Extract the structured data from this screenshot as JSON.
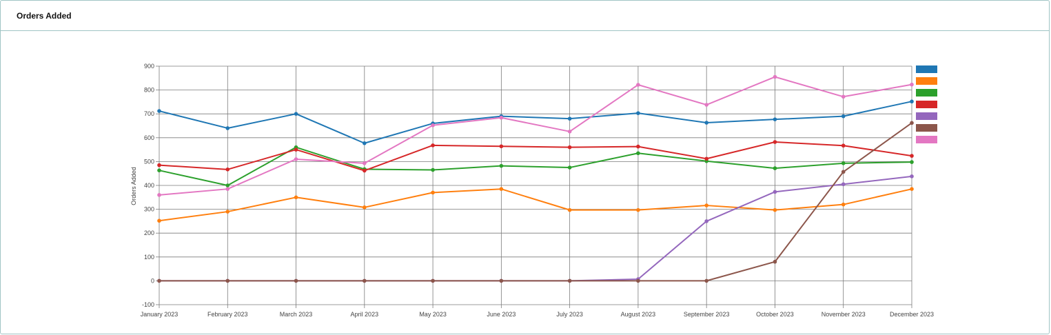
{
  "panel": {
    "title": "Orders Added"
  },
  "chart_data": {
    "type": "line",
    "title": "",
    "xlabel": "",
    "ylabel": "Orders Added",
    "ylim": [
      -100,
      900
    ],
    "yticks": [
      -100,
      0,
      100,
      200,
      300,
      400,
      500,
      600,
      700,
      800,
      900
    ],
    "grid": true,
    "legend": "right",
    "categories": [
      "January 2023",
      "February 2023",
      "March 2023",
      "April 2023",
      "May 2023",
      "June 2023",
      "July 2023",
      "August 2023",
      "September 2023",
      "October 2023",
      "November 2023",
      "December 2023"
    ],
    "series": [
      {
        "color": "#1f77b4",
        "values": [
          712,
          640,
          700,
          577,
          660,
          690,
          680,
          703,
          663,
          677,
          690,
          752
        ]
      },
      {
        "color": "#ff7f0e",
        "values": [
          252,
          290,
          350,
          308,
          370,
          385,
          297,
          297,
          316,
          297,
          320,
          385
        ]
      },
      {
        "color": "#2ca02c",
        "values": [
          463,
          400,
          560,
          468,
          465,
          482,
          475,
          535,
          502,
          472,
          493,
          498
        ]
      },
      {
        "color": "#d62728",
        "values": [
          485,
          467,
          550,
          462,
          568,
          564,
          560,
          563,
          512,
          582,
          567,
          524
        ]
      },
      {
        "color": "#9467bd",
        "values": [
          0,
          0,
          0,
          0,
          0,
          0,
          0,
          7,
          250,
          373,
          405,
          438
        ]
      },
      {
        "color": "#8c564b",
        "values": [
          0,
          0,
          0,
          0,
          0,
          0,
          0,
          0,
          0,
          80,
          457,
          662
        ]
      },
      {
        "color": "#e377c2",
        "values": [
          360,
          385,
          510,
          493,
          652,
          684,
          626,
          822,
          738,
          855,
          772,
          823
        ]
      }
    ]
  }
}
